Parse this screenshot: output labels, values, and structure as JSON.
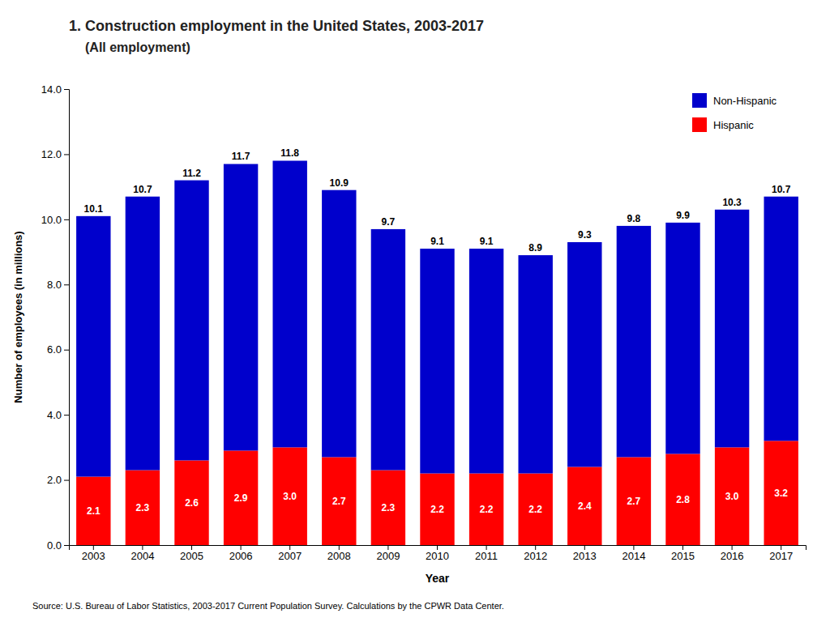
{
  "chart_data": {
    "type": "bar",
    "title": "1. Construction employment in the United States, 2003-2017",
    "subtitle": "(All employment)",
    "x_label": "Year",
    "y_label": "Number of employees (in millions)",
    "annotations": [
      "Source: U.S. Bureau of Labor Statistics, 2003-2017 Current Population Survey. Calculations by the CPWR Data Center."
    ],
    "categories": [
      "2003",
      "2004",
      "2005",
      "2006",
      "2007",
      "2008",
      "2009",
      "2010",
      "2011",
      "2012",
      "2013",
      "2014",
      "2015",
      "2016",
      "2017"
    ],
    "series": [
      {
        "name": "Hispanic",
        "color": "#FF0000",
        "data_labels": true,
        "values": [
          2.1,
          2.3,
          2.6,
          2.9,
          3.0,
          2.7,
          2.3,
          2.2,
          2.2,
          2.2,
          2.4,
          2.7,
          2.8,
          3.0,
          3.2
        ],
        "value_labels": [
          "2.1",
          "2.3",
          "2.6",
          "2.9",
          "3.0",
          "2.7",
          "2.3",
          "2.2",
          "2.2",
          "2.2",
          "2.4",
          "2.7",
          "2.8",
          "3.0",
          "3.2"
        ]
      },
      {
        "name": "Non-Hispanic",
        "color": "#0000CC",
        "data_labels": false,
        "values": [
          8.0,
          8.4,
          8.6,
          8.8,
          8.8,
          8.2,
          7.4,
          6.9,
          6.9,
          6.7,
          6.9,
          7.1,
          7.1,
          7.3,
          7.5
        ]
      }
    ],
    "totals": [
      10.1,
      10.7,
      11.2,
      11.7,
      11.8,
      10.9,
      9.7,
      9.1,
      9.1,
      8.9,
      9.3,
      9.8,
      9.9,
      10.3,
      10.7
    ],
    "stacked": true,
    "ylim": [
      0,
      14.0
    ],
    "yticks": [
      {
        "value": 0.0,
        "label": "0.0"
      },
      {
        "value": 2.0,
        "label": "2.0"
      },
      {
        "value": 4.0,
        "label": "4.0"
      },
      {
        "value": 6.0,
        "label": "6.0"
      },
      {
        "value": 8.0,
        "label": "8.0"
      },
      {
        "value": 10.0,
        "label": "10.0"
      },
      {
        "value": 12.0,
        "label": "12.0"
      },
      {
        "value": 14.0,
        "label": "14.0"
      }
    ],
    "grid": false,
    "legend": "upper right"
  }
}
